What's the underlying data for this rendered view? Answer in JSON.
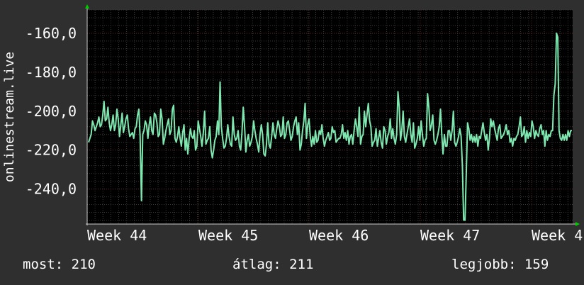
{
  "chart_data": {
    "type": "line",
    "ylabel": "onlinestream.live",
    "ylim": [
      -258,
      -148
    ],
    "yticks": [
      -160,
      -180,
      -200,
      -220,
      -240
    ],
    "ytick_labels": [
      "-160,0",
      "-180,0",
      "-200,0",
      "-220,0",
      "-240,0"
    ],
    "xtick_labels": [
      "Week 44",
      "Week 45",
      "Week 46",
      "Week 47",
      "Week 4"
    ],
    "grid": true,
    "colors": {
      "background": "#2f2f2f",
      "plot": "#000000",
      "line": "#7ee8b0",
      "grid_major": "#5a2a2a",
      "grid_minor": "#3a3a3a",
      "axis_arrow": "#00cc00",
      "text": "#ffffff"
    },
    "series": [
      {
        "values": [
          -216,
          -214,
          -212,
          -205,
          -207,
          -210,
          -208,
          -206,
          -203,
          -208,
          -207,
          -202,
          -195,
          -205,
          -204,
          -198,
          -206,
          -210,
          -207,
          -202,
          -210,
          -207,
          -199,
          -204,
          -213,
          -207,
          -201,
          -211,
          -208,
          -204,
          -202,
          -209,
          -213,
          -212,
          -211,
          -214,
          -209,
          -208,
          -202,
          -199,
          -213,
          -246,
          -212,
          -210,
          -205,
          -207,
          -214,
          -207,
          -203,
          -210,
          -212,
          -201,
          -202,
          -206,
          -213,
          -212,
          -199,
          -204,
          -217,
          -214,
          -210,
          -207,
          -204,
          -212,
          -210,
          -199,
          -197,
          -214,
          -216,
          -213,
          -208,
          -214,
          -218,
          -211,
          -207,
          -220,
          -214,
          -222,
          -214,
          -209,
          -213,
          -214,
          -210,
          -220,
          -218,
          -205,
          -209,
          -213,
          -218,
          -211,
          -200,
          -217,
          -215,
          -214,
          -208,
          -220,
          -224,
          -220,
          -215,
          -213,
          -205,
          -212,
          -185,
          -208,
          -214,
          -219,
          -218,
          -214,
          -207,
          -213,
          -217,
          -218,
          -203,
          -212,
          -215,
          -214,
          -210,
          -218,
          -220,
          -211,
          -198,
          -208,
          -221,
          -215,
          -212,
          -218,
          -216,
          -213,
          -205,
          -210,
          -214,
          -217,
          -221,
          -212,
          -207,
          -212,
          -222,
          -223,
          -217,
          -206,
          -217,
          -219,
          -213,
          -206,
          -212,
          -214,
          -209,
          -205,
          -208,
          -213,
          -212,
          -203,
          -214,
          -212,
          -206,
          -205,
          -210,
          -215,
          -213,
          -208,
          -205,
          -203,
          -212,
          -206,
          -220,
          -217,
          -210,
          -205,
          -196,
          -214,
          -207,
          -204,
          -213,
          -218,
          -213,
          -217,
          -210,
          -216,
          -215,
          -210,
          -212,
          -207,
          -214,
          -218,
          -215,
          -213,
          -211,
          -215,
          -214,
          -208,
          -211,
          -210,
          -216,
          -215,
          -214,
          -214,
          -212,
          -207,
          -214,
          -211,
          -215,
          -210,
          -217,
          -213,
          -212,
          -217,
          -210,
          -204,
          -208,
          -213,
          -198,
          -217,
          -213,
          -212,
          -200,
          -208,
          -202,
          -196,
          -205,
          -208,
          -218,
          -216,
          -215,
          -209,
          -218,
          -214,
          -210,
          -216,
          -219,
          -208,
          -210,
          -217,
          -213,
          -211,
          -204,
          -214,
          -209,
          -214,
          -217,
          -212,
          -190,
          -198,
          -215,
          -210,
          -200,
          -213,
          -216,
          -212,
          -208,
          -204,
          -212,
          -216,
          -206,
          -219,
          -217,
          -214,
          -208,
          -215,
          -205,
          -212,
          -218,
          -215,
          -214,
          -191,
          -198,
          -210,
          -207,
          -202,
          -215,
          -217,
          -215,
          -212,
          -208,
          -199,
          -212,
          -222,
          -212,
          -218,
          -218,
          -210,
          -210,
          -215,
          -210,
          -200,
          -216,
          -218,
          -216,
          -213,
          -209,
          -213,
          -228,
          -256,
          -256,
          -232,
          -206,
          -209,
          -215,
          -212,
          -216,
          -213,
          -216,
          -212,
          -218,
          -213,
          -214,
          -210,
          -206,
          -211,
          -215,
          -212,
          -220,
          -214,
          -204,
          -208,
          -205,
          -209,
          -212,
          -215,
          -209,
          -207,
          -214,
          -213,
          -212,
          -210,
          -207,
          -212,
          -210,
          -216,
          -214,
          -218,
          -214,
          -215,
          -213,
          -212,
          -208,
          -203,
          -213,
          -212,
          -208,
          -216,
          -210,
          -214,
          -211,
          -213,
          -205,
          -208,
          -214,
          -210,
          -212,
          -213,
          -209,
          -207,
          -212,
          -210,
          -218,
          -210,
          -215,
          -212,
          -213,
          -210,
          -210,
          -192,
          -186,
          -160,
          -162,
          -210,
          -214,
          -215,
          -212,
          -215,
          -212,
          -215,
          -210,
          -213,
          -210,
          -210
        ]
      }
    ]
  },
  "stats": {
    "current": "most: 210",
    "average": "átlag: 211",
    "best": "legjobb: 159"
  }
}
